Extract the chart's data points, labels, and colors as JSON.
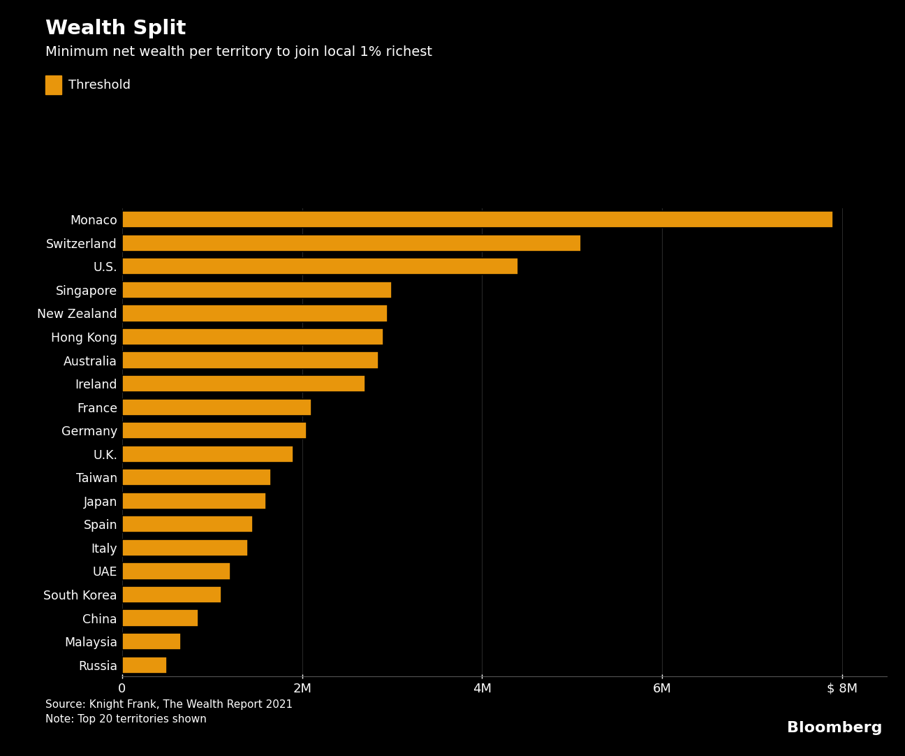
{
  "title": "Wealth Split",
  "subtitle": "Minimum net wealth per territory to join local 1% richest",
  "legend_label": "Threshold",
  "bar_color": "#E8960C",
  "background_color": "#000000",
  "text_color": "#FFFFFF",
  "source_text": "Source: Knight Frank, The Wealth Report 2021\nNote: Top 20 territories shown",
  "bloomberg_text": "Bloomberg",
  "countries": [
    "Monaco",
    "Switzerland",
    "U.S.",
    "Singapore",
    "New Zealand",
    "Hong Kong",
    "Australia",
    "Ireland",
    "France",
    "Germany",
    "U.K.",
    "Taiwan",
    "Japan",
    "Spain",
    "Italy",
    "UAE",
    "South Korea",
    "China",
    "Malaysia",
    "Russia"
  ],
  "values": [
    7900000,
    5100000,
    4400000,
    3000000,
    2950000,
    2900000,
    2850000,
    2700000,
    2100000,
    2050000,
    1900000,
    1650000,
    1600000,
    1450000,
    1400000,
    1200000,
    1100000,
    850000,
    650000,
    500000
  ],
  "xlim": [
    0,
    8500000
  ],
  "xtick_values": [
    0,
    2000000,
    4000000,
    6000000,
    8000000
  ],
  "xtick_labels": [
    "0",
    "2M",
    "4M",
    "6M",
    "$ 8M"
  ],
  "figsize": [
    12.96,
    10.82
  ],
  "dpi": 100
}
